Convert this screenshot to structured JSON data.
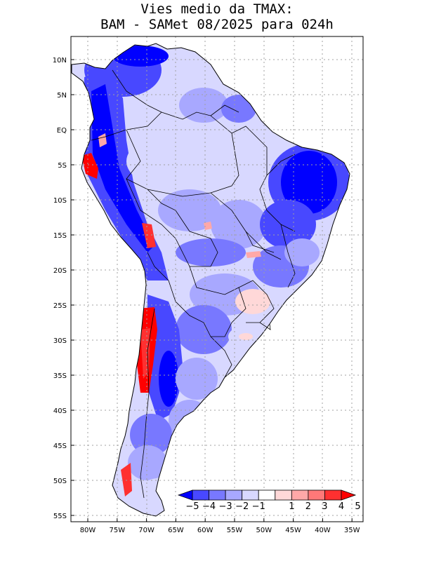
{
  "title_line1": "Vies medio da TMAX:",
  "title_line2": "BAM - SAMet 08/2025  para 024h",
  "lat_labels": [
    "10N",
    "5N",
    "EQ",
    "5S",
    "10S",
    "15S",
    "20S",
    "25S",
    "30S",
    "35S",
    "40S",
    "45S",
    "50S",
    "55S"
  ],
  "lon_labels": [
    "80W",
    "75W",
    "70W",
    "65W",
    "60W",
    "55W",
    "50W",
    "45W",
    "40W",
    "35W"
  ],
  "legend": {
    "labels": [
      "-5",
      "-4",
      "-3",
      "-2",
      "-1",
      "1",
      "2",
      "3",
      "4",
      "5"
    ],
    "colors": [
      "#0000ff",
      "#4848ff",
      "#7878ff",
      "#a8a8ff",
      "#d8d8ff",
      "#ffffff",
      "#ffd8d8",
      "#ffa8a8",
      "#ff7878",
      "#ff3030",
      "#ff0000"
    ]
  },
  "colors": {
    "frame": "#000000",
    "grid": "#a0a0a0",
    "coast": "#000000"
  }
}
